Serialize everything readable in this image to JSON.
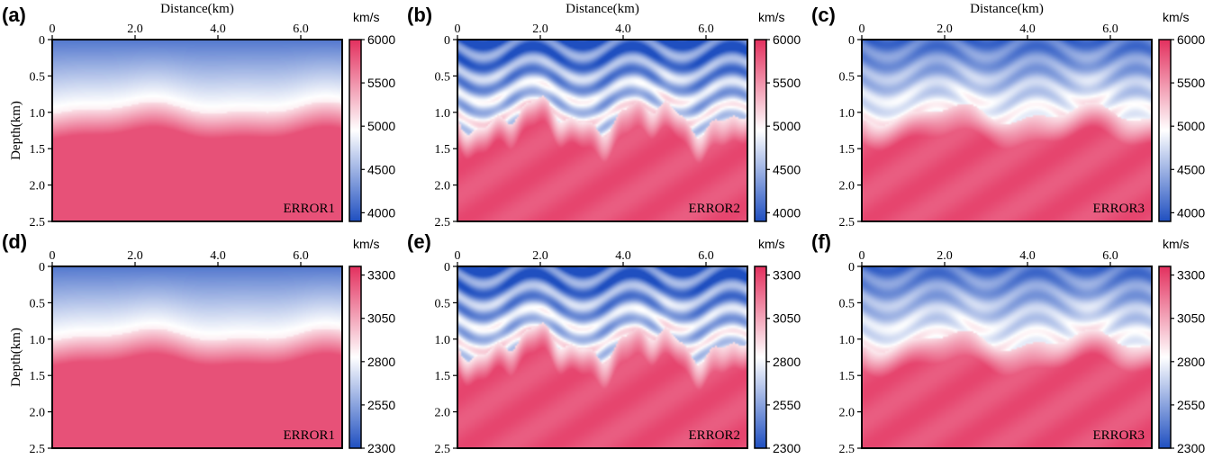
{
  "figure": {
    "title": "",
    "shared": {
      "x_label": "Distance(km)",
      "y_label": "Depth(km)",
      "unit_label": "km/s",
      "x_ticks": [
        "0",
        "2.0",
        "4.0",
        "6.0"
      ],
      "y_ticks": [
        "0",
        "0.5",
        "1.0",
        "1.5",
        "2.0",
        "2.5"
      ]
    },
    "colormap": {
      "low": "#1f4fc0",
      "mid": "#ffffff",
      "high": "#e3305e"
    }
  },
  "chart_data": [
    {
      "panel": "(a)",
      "type": "heatmap",
      "label": "ERROR1",
      "model": "smooth",
      "xlabel": "Distance(km)",
      "ylabel": "Depth(km)",
      "xlim": [
        0,
        7
      ],
      "ylim": [
        0,
        2.5
      ],
      "colorbar": {
        "unit": "km/s",
        "min": 3900,
        "max": 6000,
        "ticks": [
          6000,
          5500,
          5000,
          4500,
          4000
        ]
      }
    },
    {
      "panel": "(b)",
      "type": "heatmap",
      "label": "ERROR2",
      "model": "detailed",
      "xlabel": "Distance(km)",
      "ylabel": "",
      "xlim": [
        0,
        7
      ],
      "ylim": [
        0,
        2.5
      ],
      "colorbar": {
        "unit": "km/s",
        "min": 3900,
        "max": 6000,
        "ticks": [
          6000,
          5500,
          5000,
          4500,
          4000
        ]
      }
    },
    {
      "panel": "(c)",
      "type": "heatmap",
      "label": "ERROR3",
      "model": "medium",
      "xlabel": "Distance(km)",
      "ylabel": "",
      "xlim": [
        0,
        7
      ],
      "ylim": [
        0,
        2.5
      ],
      "colorbar": {
        "unit": "km/s",
        "min": 3900,
        "max": 6000,
        "ticks": [
          6000,
          5500,
          5000,
          4500,
          4000
        ]
      }
    },
    {
      "panel": "(d)",
      "type": "heatmap",
      "label": "ERROR1",
      "model": "smooth",
      "xlabel": "",
      "ylabel": "Depth(km)",
      "xlim": [
        0,
        7
      ],
      "ylim": [
        0,
        2.5
      ],
      "colorbar": {
        "unit": "km/s",
        "min": 2300,
        "max": 3350,
        "ticks": [
          3300,
          3050,
          2800,
          2550,
          2300
        ]
      }
    },
    {
      "panel": "(e)",
      "type": "heatmap",
      "label": "ERROR2",
      "model": "detailed",
      "xlabel": "",
      "ylabel": "",
      "xlim": [
        0,
        7
      ],
      "ylim": [
        0,
        2.5
      ],
      "colorbar": {
        "unit": "km/s",
        "min": 2300,
        "max": 3350,
        "ticks": [
          3300,
          3050,
          2800,
          2550,
          2300
        ]
      }
    },
    {
      "panel": "(f)",
      "type": "heatmap",
      "label": "ERROR3",
      "model": "medium",
      "xlabel": "",
      "ylabel": "",
      "xlim": [
        0,
        7
      ],
      "ylim": [
        0,
        2.5
      ],
      "colorbar": {
        "unit": "km/s",
        "min": 2300,
        "max": 3350,
        "ticks": [
          3300,
          3050,
          2800,
          2550,
          2300
        ]
      }
    }
  ]
}
